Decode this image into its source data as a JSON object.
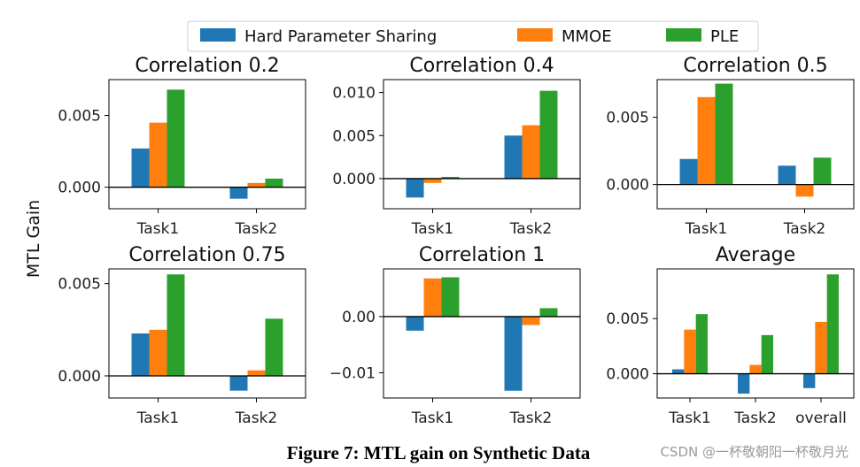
{
  "chart_data": {
    "type": "bar",
    "legend": {
      "placement": "top-center",
      "entries": [
        {
          "name": "Hard Parameter Sharing",
          "color": "#1f77b4"
        },
        {
          "name": "MMOE",
          "color": "#ff7f0e"
        },
        {
          "name": "PLE",
          "color": "#2ca02c"
        }
      ]
    },
    "shared_ylabel": "MTL Gain",
    "caption": "Figure 7: MTL gain on Synthetic Data",
    "watermark": "CSDN @一杯敬朝阳一杯敬月光",
    "subplots": [
      {
        "title": "Correlation 0.2",
        "categories": [
          "Task1",
          "Task2"
        ],
        "ylim": [
          -0.0015,
          0.0075
        ],
        "yticks": [
          0.0,
          0.005
        ],
        "ytick_labels": [
          "0.000",
          "0.005"
        ],
        "series": [
          {
            "name": "Hard Parameter Sharing",
            "values": [
              0.0027,
              -0.0008
            ]
          },
          {
            "name": "MMOE",
            "values": [
              0.0045,
              0.0003
            ]
          },
          {
            "name": "PLE",
            "values": [
              0.0068,
              0.0006
            ]
          }
        ]
      },
      {
        "title": "Correlation 0.4",
        "categories": [
          "Task1",
          "Task2"
        ],
        "ylim": [
          -0.0035,
          0.0115
        ],
        "yticks": [
          0.0,
          0.005,
          0.01
        ],
        "ytick_labels": [
          "0.000",
          "0.005",
          "0.010"
        ],
        "series": [
          {
            "name": "Hard Parameter Sharing",
            "values": [
              -0.0022,
              0.005
            ]
          },
          {
            "name": "MMOE",
            "values": [
              -0.0005,
              0.0062
            ]
          },
          {
            "name": "PLE",
            "values": [
              0.0002,
              0.0102
            ]
          }
        ]
      },
      {
        "title": "Correlation 0.5",
        "categories": [
          "Task1",
          "Task2"
        ],
        "ylim": [
          -0.0018,
          0.0078
        ],
        "yticks": [
          0.0,
          0.005
        ],
        "ytick_labels": [
          "0.000",
          "0.005"
        ],
        "series": [
          {
            "name": "Hard Parameter Sharing",
            "values": [
              0.0019,
              0.0014
            ]
          },
          {
            "name": "MMOE",
            "values": [
              0.0065,
              -0.0009
            ]
          },
          {
            "name": "PLE",
            "values": [
              0.0075,
              0.002
            ]
          }
        ]
      },
      {
        "title": "Correlation 0.75",
        "categories": [
          "Task1",
          "Task2"
        ],
        "ylim": [
          -0.0012,
          0.0058
        ],
        "yticks": [
          0.0,
          0.005
        ],
        "ytick_labels": [
          "0.000",
          "0.005"
        ],
        "series": [
          {
            "name": "Hard Parameter Sharing",
            "values": [
              0.0023,
              -0.0008
            ]
          },
          {
            "name": "MMOE",
            "values": [
              0.0025,
              0.0003
            ]
          },
          {
            "name": "PLE",
            "values": [
              0.0055,
              0.0031
            ]
          }
        ]
      },
      {
        "title": "Correlation 1",
        "categories": [
          "Task1",
          "Task2"
        ],
        "ylim": [
          -0.0145,
          0.0085
        ],
        "yticks": [
          -0.01,
          0.0
        ],
        "ytick_labels": [
          "−0.01",
          "0.00"
        ],
        "series": [
          {
            "name": "Hard Parameter Sharing",
            "values": [
              -0.0025,
              -0.0132
            ]
          },
          {
            "name": "MMOE",
            "values": [
              0.0068,
              -0.0015
            ]
          },
          {
            "name": "PLE",
            "values": [
              0.007,
              0.0015
            ]
          }
        ]
      },
      {
        "title": "Average",
        "categories": [
          "Task1",
          "Task2",
          "overall"
        ],
        "ylim": [
          -0.0022,
          0.0095
        ],
        "yticks": [
          0.0,
          0.005
        ],
        "ytick_labels": [
          "0.000",
          "0.005"
        ],
        "series": [
          {
            "name": "Hard Parameter Sharing",
            "values": [
              0.0004,
              -0.0018,
              -0.0013
            ]
          },
          {
            "name": "MMOE",
            "values": [
              0.004,
              0.0008,
              0.0047
            ]
          },
          {
            "name": "PLE",
            "values": [
              0.0054,
              0.0035,
              0.009
            ]
          }
        ]
      }
    ]
  }
}
